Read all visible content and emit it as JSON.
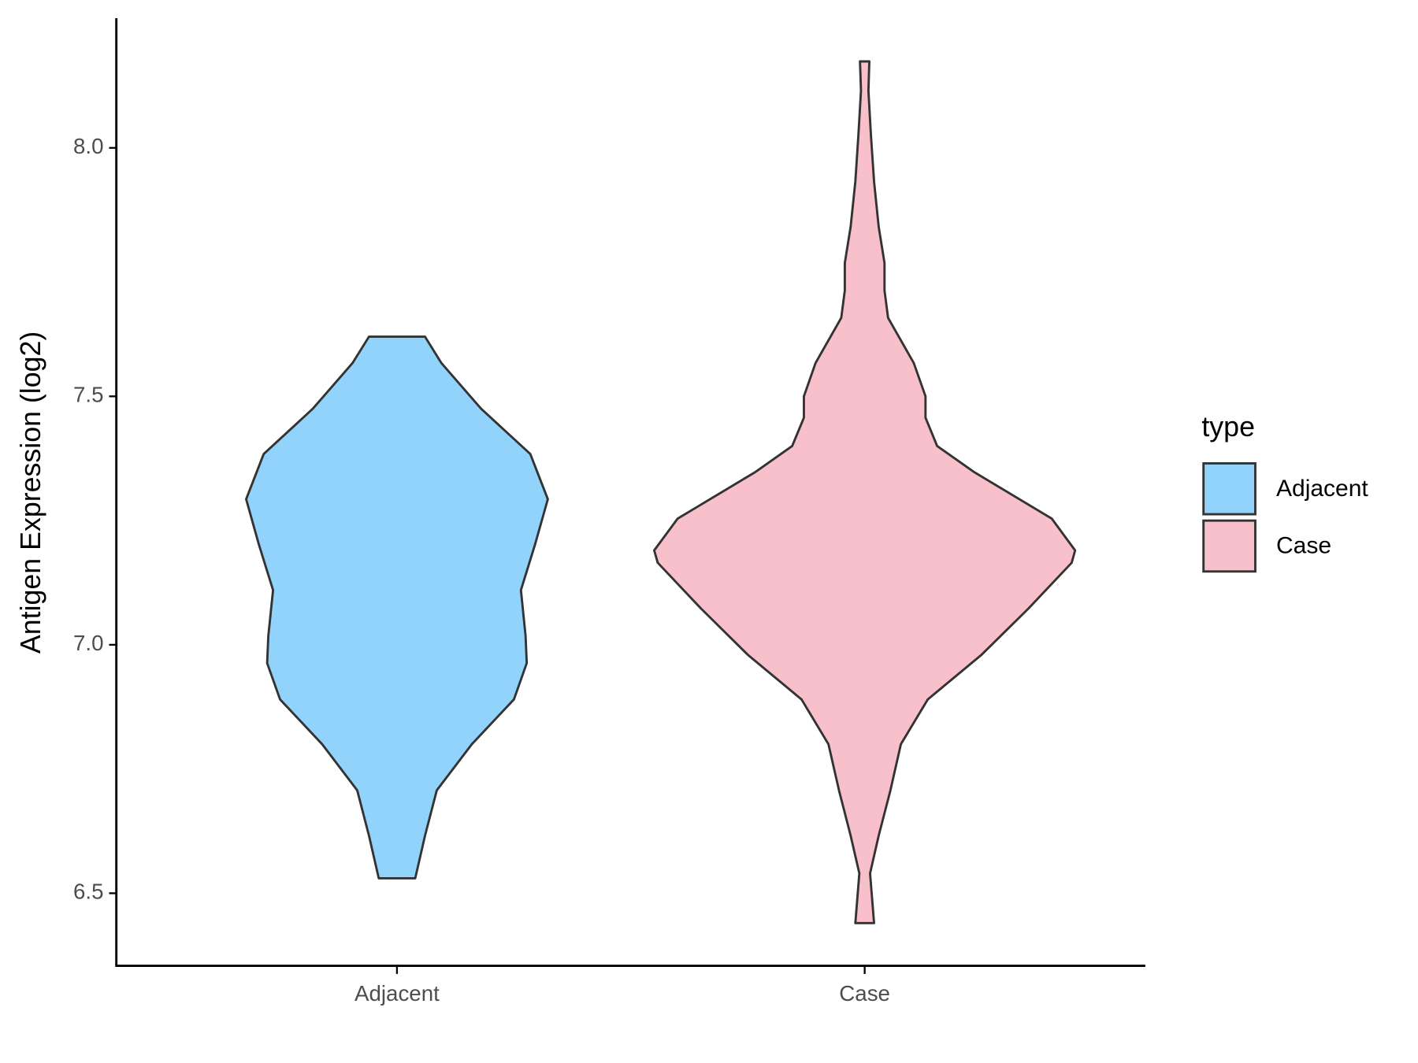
{
  "chart_data": {
    "type": "violin",
    "y_label": "Antigen Expression (log2)",
    "categories": [
      "Adjacent",
      "Case"
    ],
    "legend_title": "type",
    "legend_position": "right",
    "ylim": [
      6.354,
      8.261
    ],
    "yticks": [
      {
        "value": 6.5,
        "label": "6.5"
      },
      {
        "value": 7,
        "label": "7.0"
      },
      {
        "value": 7.5,
        "label": "7.5"
      },
      {
        "value": 8,
        "label": "8.0"
      }
    ],
    "series": [
      {
        "name": "Adjacent",
        "color": "#92d3fc",
        "y": [
          7.62,
          7.567,
          7.475,
          7.384,
          7.293,
          7.201,
          7.11,
          7.018,
          6.963,
          6.89,
          6.8,
          6.707,
          6.616,
          6.53
        ],
        "width": [
          0.12,
          0.19,
          0.36,
          0.57,
          0.645,
          0.59,
          0.53,
          0.55,
          0.555,
          0.5,
          0.32,
          0.17,
          0.12,
          0.078
        ]
      },
      {
        "name": "Case",
        "color": "#f7c0cb",
        "y": [
          6.44,
          6.54,
          6.616,
          6.707,
          6.8,
          6.89,
          6.98,
          7.073,
          7.165,
          7.19,
          7.254,
          7.347,
          7.4,
          7.457,
          7.5,
          7.567,
          7.658,
          7.713,
          7.768,
          7.841,
          7.932,
          8.024,
          8.115,
          8.174
        ],
        "width": [
          0.04,
          0.023,
          0.06,
          0.11,
          0.155,
          0.27,
          0.5,
          0.7,
          0.885,
          0.9,
          0.8,
          0.47,
          0.31,
          0.26,
          0.26,
          0.21,
          0.1,
          0.085,
          0.085,
          0.06,
          0.04,
          0.027,
          0.016,
          0.02
        ]
      }
    ]
  }
}
